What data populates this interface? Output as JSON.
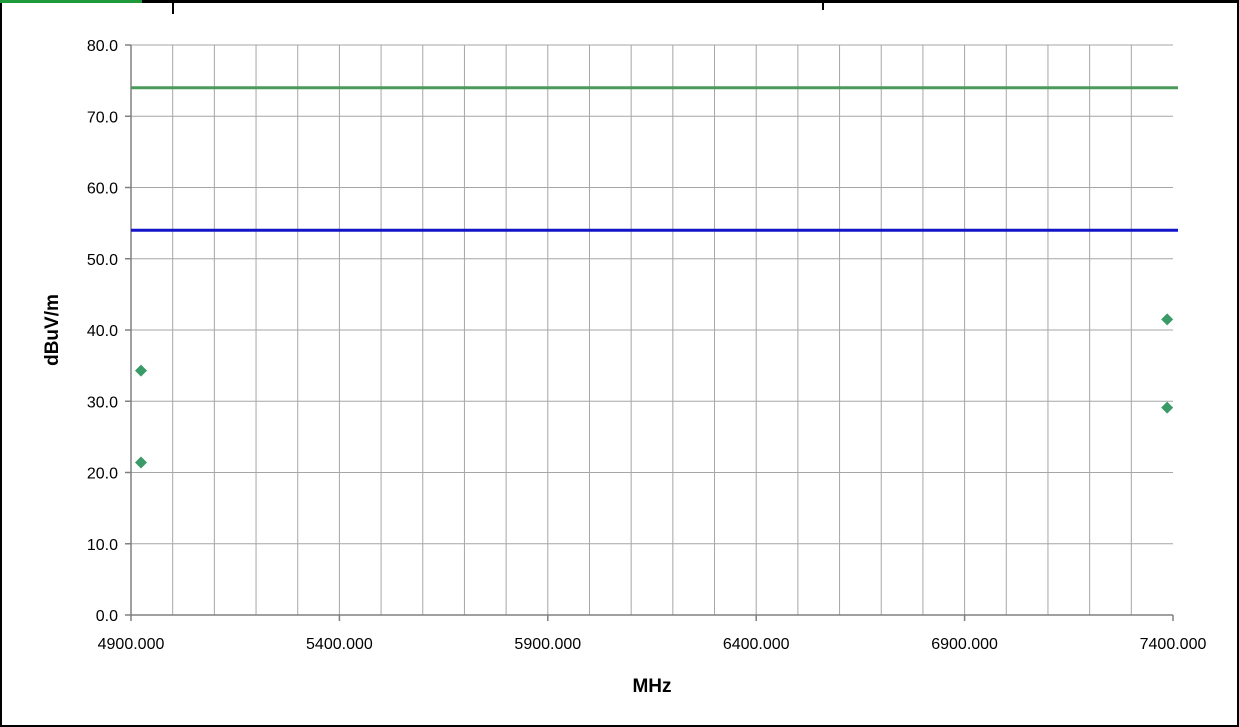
{
  "chart_data": {
    "type": "scatter",
    "title": "",
    "xlabel": "MHz",
    "ylabel": "dBuV/m",
    "xlim": [
      4900,
      7400
    ],
    "ylim": [
      0,
      80
    ],
    "x_ticks": [
      "4900.000",
      "5400.000",
      "5900.000",
      "6400.000",
      "6900.000",
      "7400.000"
    ],
    "y_ticks": [
      "0.0",
      "10.0",
      "20.0",
      "30.0",
      "40.0",
      "50.0",
      "60.0",
      "70.0",
      "80.0"
    ],
    "grid": true,
    "legend": "none",
    "series": [
      {
        "type": "scatter",
        "color": "#3a9a68",
        "marker": "diamond",
        "points": [
          {
            "x": 4924,
            "y": 34.3
          },
          {
            "x": 4924,
            "y": 21.4
          },
          {
            "x": 7386,
            "y": 41.5
          },
          {
            "x": 7386,
            "y": 29.1
          }
        ]
      },
      {
        "type": "hline",
        "y": 74.0,
        "color": "#4a9a5a"
      },
      {
        "type": "hline",
        "y": 54.0,
        "color": "#1414c8"
      }
    ]
  }
}
